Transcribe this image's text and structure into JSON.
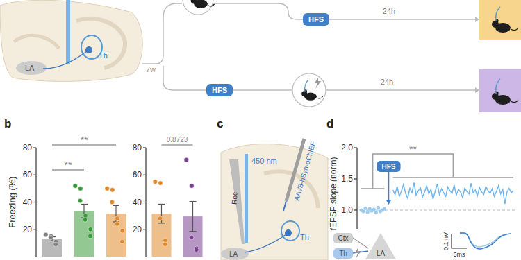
{
  "panel_a": {
    "region_labels": [
      "LA",
      "Th"
    ],
    "delay": "7w",
    "upper_branch": {
      "step": "HFS",
      "interval": "24h"
    },
    "lower_branch": {
      "step": "HFS",
      "interval": "24h"
    }
  },
  "panel_labels": [
    "b",
    "c",
    "d"
  ],
  "panel_c": {
    "light": "450 nm",
    "electrode": "Rec",
    "virus": "AAV8-hSyn-oChIEF",
    "regions": [
      "Th",
      "LA"
    ]
  },
  "panel_d_inset": {
    "nodes": [
      "Ctx",
      "Th",
      "LA"
    ],
    "scale_bar": {
      "amplitude": "0.1mV",
      "time": "5ms"
    }
  },
  "chart_data": [
    {
      "type": "bar",
      "ylabel": "Freezing (%)",
      "categories": [
        null,
        null,
        null
      ],
      "values": [
        13,
        33.5,
        31.5
      ],
      "errors": [
        1.5,
        5,
        6
      ],
      "points": [
        [
          16,
          15,
          14,
          11,
          9
        ],
        [
          52,
          50,
          41,
          30,
          27,
          20,
          15
        ],
        [
          50,
          49,
          40,
          28,
          24,
          19,
          11
        ]
      ],
      "colors": [
        "#808080",
        "#3a9b3a",
        "#e0892b"
      ],
      "ylim": [
        0,
        80
      ],
      "yticks": [
        20,
        40,
        60,
        80
      ],
      "tick_labels": "y",
      "annotations": [
        {
          "text": "**",
          "between": [
            0,
            2
          ]
        },
        {
          "text": "**",
          "between": [
            0,
            1
          ]
        }
      ]
    },
    {
      "type": "bar",
      "categories": [
        null,
        null
      ],
      "values": [
        31.5,
        29.5
      ],
      "errors": [
        7,
        11
      ],
      "points": [
        [
          55,
          54,
          28,
          12,
          9
        ],
        [
          71,
          52,
          14,
          6,
          5
        ]
      ],
      "colors": [
        "#e0892b",
        "#7a3f92"
      ],
      "ylim": [
        0,
        80
      ],
      "yticks": [
        20,
        40,
        60,
        80
      ],
      "tick_labels": "y",
      "annotations": [
        {
          "text": "0.8723",
          "between": [
            0,
            1
          ]
        }
      ]
    },
    {
      "type": "line",
      "ylabel": "fEPSP slope (norm)",
      "x": [
        0,
        1,
        2,
        3,
        4,
        5,
        6,
        7,
        8,
        9,
        10,
        11,
        15,
        16,
        17,
        18,
        19,
        20,
        21,
        22,
        23,
        24,
        25,
        26,
        27,
        28,
        29,
        30,
        31,
        32,
        33,
        34,
        35,
        36,
        37,
        38,
        39,
        40,
        41,
        42,
        43,
        44,
        45,
        46,
        47,
        48,
        49,
        50,
        51,
        52,
        53,
        54,
        55,
        56,
        57,
        58,
        59,
        60,
        61,
        62,
        63,
        64,
        65,
        66,
        67,
        68,
        69,
        70,
        71,
        72
      ],
      "series": [
        {
          "color": "#9ccbee",
          "marker": "circle",
          "line_style": "none",
          "values": [
            1.0,
            0.98,
            1.03,
            0.97,
            1.02,
            0.99,
            1.01,
            0.96,
            1.04,
            0.98,
            1.0,
            1.02,
            null,
            null,
            null,
            null,
            null,
            null,
            null,
            null,
            null,
            null,
            null,
            null,
            null,
            null,
            null,
            null,
            null,
            null,
            null,
            null,
            null,
            null,
            null,
            null,
            null,
            null,
            null,
            null,
            null,
            null,
            null,
            null,
            null,
            null,
            null,
            null,
            null,
            null,
            null,
            null,
            null,
            null,
            null,
            null,
            null,
            null,
            null,
            null,
            null,
            null,
            null,
            null,
            null,
            null,
            null,
            null,
            null,
            null
          ]
        },
        {
          "color": "#6fb6ee",
          "line_style": "solid",
          "values": [
            null,
            null,
            null,
            null,
            null,
            null,
            null,
            null,
            null,
            null,
            null,
            null,
            1.32,
            1.25,
            1.38,
            1.22,
            1.3,
            1.41,
            1.27,
            1.19,
            1.35,
            1.28,
            1.44,
            1.24,
            1.31,
            1.36,
            1.21,
            1.29,
            1.39,
            1.26,
            1.33,
            1.18,
            1.3,
            1.42,
            1.25,
            1.34,
            1.28,
            1.22,
            1.37,
            1.31,
            1.27,
            1.4,
            1.24,
            1.33,
            1.29,
            1.2,
            1.35,
            1.3,
            1.26,
            1.43,
            1.28,
            1.32,
            1.23,
            1.36,
            1.29,
            1.25,
            1.38,
            1.31,
            1.27,
            1.34,
            1.22,
            1.3,
            1.39,
            1.26,
            1.33,
            1.1,
            1.29,
            1.35,
            1.28,
            1.31
          ]
        }
      ],
      "xlim": [
        0,
        73
      ],
      "ylim": [
        0.7,
        2.0
      ],
      "yticks": [
        {
          "value": 2,
          "label": "2.0"
        },
        1.5,
        {
          "value": 1,
          "label": "1.0"
        }
      ],
      "baseline": 1,
      "tick_labels": "y",
      "annotations": [
        {
          "text": "HFS",
          "x": 13
        },
        {
          "text": "**",
          "between": [
            [
              0,
              11
            ],
            [
              15,
              72
            ]
          ]
        }
      ]
    }
  ]
}
